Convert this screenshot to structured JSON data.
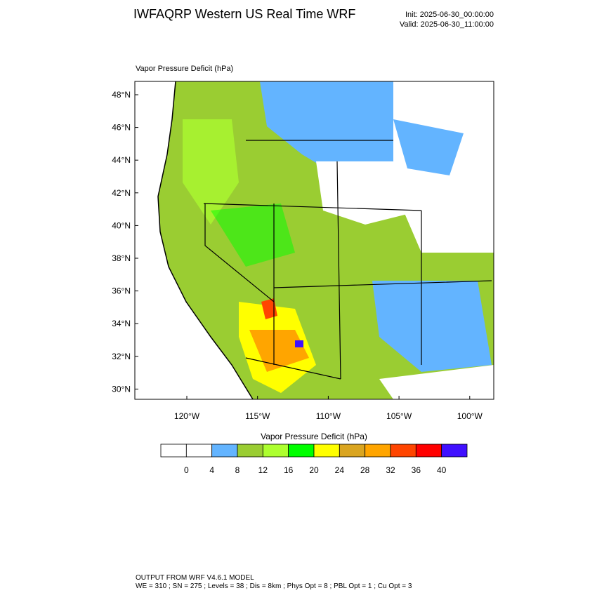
{
  "header": {
    "title": "IWFAQRP Western US Real Time WRF",
    "init": "Init: 2025-06-30_00:00:00",
    "valid": "Valid: 2025-06-30_11:00:00"
  },
  "map": {
    "label": "Vapor Pressure Deficit   (hPa)",
    "lat_labels": [
      "48°N",
      "46°N",
      "44°N",
      "42°N",
      "40°N",
      "38°N",
      "36°N",
      "34°N",
      "32°N",
      "30°N"
    ],
    "lon_labels": [
      "120°W",
      "115°W",
      "110°W",
      "105°W",
      "100°W"
    ]
  },
  "colorbar": {
    "title": "Vapor Pressure Deficit  (hPa)",
    "colors": [
      "#ffffff",
      "#ffffff",
      "#63b4ff",
      "#9acd32",
      "#adff2f",
      "#00ff00",
      "#ffff00",
      "#daa520",
      "#ffa500",
      "#ff4500",
      "#ff0000",
      "#4010ff"
    ],
    "labels": [
      "0",
      "4",
      "8",
      "12",
      "16",
      "20",
      "24",
      "28",
      "32",
      "36",
      "40"
    ]
  },
  "footer": {
    "lines": [
      "OUTPUT FROM WRF V4.6.1 MODEL",
      "WE = 310 ; SN = 275 ; Levels = 38 ; Dis = 8km ; Phys Opt = 8 ; PBL Opt = 1 ; Cu Opt = 3"
    ]
  }
}
